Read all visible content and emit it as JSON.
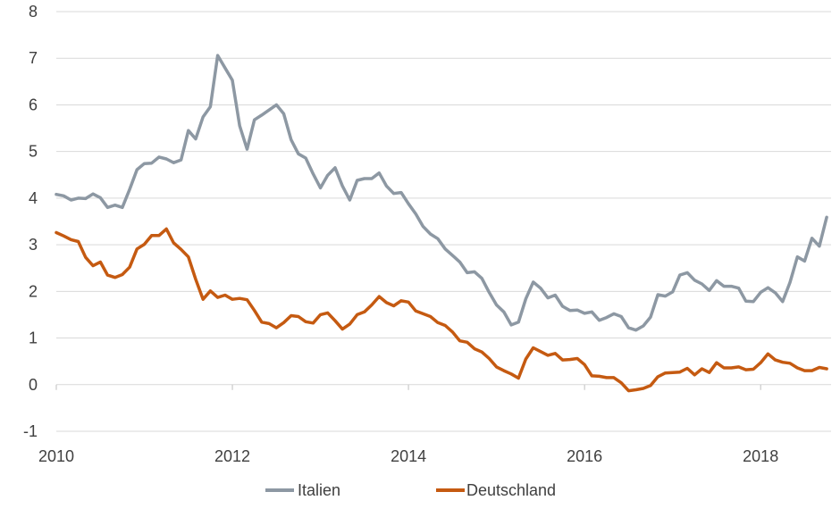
{
  "chart_data": {
    "type": "line",
    "title": "",
    "xlabel": "",
    "ylabel": "",
    "xlim": [
      2010.0,
      2018.8
    ],
    "ylim": [
      -1,
      8
    ],
    "grid": true,
    "legend": "bottom-center",
    "y_ticks": [
      "-1",
      "0",
      "1",
      "2",
      "3",
      "4",
      "5",
      "6",
      "7",
      "8"
    ],
    "x_ticks": [
      "2010",
      "2012",
      "2014",
      "2016",
      "2018"
    ],
    "x": [
      2010.0,
      2010.083,
      2010.167,
      2010.25,
      2010.333,
      2010.417,
      2010.5,
      2010.583,
      2010.667,
      2010.75,
      2010.833,
      2010.917,
      2011.0,
      2011.083,
      2011.167,
      2011.25,
      2011.333,
      2011.417,
      2011.5,
      2011.583,
      2011.667,
      2011.75,
      2011.833,
      2011.917,
      2012.0,
      2012.083,
      2012.167,
      2012.25,
      2012.333,
      2012.417,
      2012.5,
      2012.583,
      2012.667,
      2012.75,
      2012.833,
      2012.917,
      2013.0,
      2013.083,
      2013.167,
      2013.25,
      2013.333,
      2013.417,
      2013.5,
      2013.583,
      2013.667,
      2013.75,
      2013.833,
      2013.917,
      2014.0,
      2014.083,
      2014.167,
      2014.25,
      2014.333,
      2014.417,
      2014.5,
      2014.583,
      2014.667,
      2014.75,
      2014.833,
      2014.917,
      2015.0,
      2015.083,
      2015.167,
      2015.25,
      2015.333,
      2015.417,
      2015.5,
      2015.583,
      2015.667,
      2015.75,
      2015.833,
      2015.917,
      2016.0,
      2016.083,
      2016.167,
      2016.25,
      2016.333,
      2016.417,
      2016.5,
      2016.583,
      2016.667,
      2016.75,
      2016.833,
      2016.917,
      2017.0,
      2017.083,
      2017.167,
      2017.25,
      2017.333,
      2017.417,
      2017.5,
      2017.583,
      2017.667,
      2017.75,
      2017.833,
      2017.917,
      2018.0,
      2018.083,
      2018.167,
      2018.25,
      2018.333,
      2018.417,
      2018.5,
      2018.583,
      2018.667,
      2018.75
    ],
    "series": [
      {
        "name": "Italien",
        "color": "#8d98a3",
        "values": [
          4.08,
          4.05,
          3.96,
          4.0,
          3.99,
          4.09,
          4.01,
          3.8,
          3.85,
          3.8,
          4.19,
          4.61,
          4.74,
          4.75,
          4.88,
          4.84,
          4.76,
          4.82,
          5.45,
          5.27,
          5.74,
          5.96,
          7.06,
          6.79,
          6.53,
          5.55,
          5.05,
          5.68,
          5.78,
          5.89,
          6.0,
          5.81,
          5.25,
          4.95,
          4.86,
          4.52,
          4.22,
          4.49,
          4.65,
          4.26,
          3.96,
          4.38,
          4.42,
          4.42,
          4.54,
          4.26,
          4.1,
          4.12,
          3.88,
          3.66,
          3.39,
          3.23,
          3.13,
          2.91,
          2.77,
          2.63,
          2.4,
          2.42,
          2.28,
          1.98,
          1.71,
          1.56,
          1.28,
          1.34,
          1.84,
          2.2,
          2.07,
          1.86,
          1.92,
          1.68,
          1.59,
          1.6,
          1.53,
          1.56,
          1.38,
          1.44,
          1.52,
          1.46,
          1.22,
          1.17,
          1.26,
          1.45,
          1.93,
          1.9,
          1.99,
          2.35,
          2.4,
          2.24,
          2.16,
          2.02,
          2.23,
          2.11,
          2.11,
          2.07,
          1.79,
          1.78,
          1.98,
          2.08,
          1.97,
          1.78,
          2.19,
          2.74,
          2.65,
          3.14,
          2.97,
          3.59
        ]
      },
      {
        "name": "Deutschland",
        "color": "#c55a11",
        "values": [
          3.26,
          3.19,
          3.11,
          3.07,
          2.73,
          2.55,
          2.63,
          2.35,
          2.3,
          2.36,
          2.52,
          2.91,
          3.01,
          3.2,
          3.2,
          3.34,
          3.04,
          2.9,
          2.74,
          2.26,
          1.83,
          2.01,
          1.87,
          1.92,
          1.83,
          1.85,
          1.82,
          1.59,
          1.34,
          1.31,
          1.22,
          1.33,
          1.48,
          1.46,
          1.35,
          1.32,
          1.5,
          1.54,
          1.37,
          1.19,
          1.3,
          1.5,
          1.56,
          1.71,
          1.89,
          1.76,
          1.69,
          1.8,
          1.77,
          1.58,
          1.52,
          1.46,
          1.33,
          1.27,
          1.13,
          0.94,
          0.91,
          0.77,
          0.7,
          0.56,
          0.38,
          0.3,
          0.23,
          0.14,
          0.55,
          0.79,
          0.71,
          0.63,
          0.67,
          0.53,
          0.54,
          0.56,
          0.43,
          0.19,
          0.18,
          0.15,
          0.15,
          0.04,
          -0.13,
          -0.11,
          -0.08,
          -0.02,
          0.17,
          0.25,
          0.26,
          0.27,
          0.35,
          0.21,
          0.34,
          0.26,
          0.47,
          0.36,
          0.36,
          0.38,
          0.32,
          0.33,
          0.47,
          0.66,
          0.53,
          0.48,
          0.46,
          0.36,
          0.3,
          0.3,
          0.37,
          0.34
        ]
      }
    ]
  }
}
